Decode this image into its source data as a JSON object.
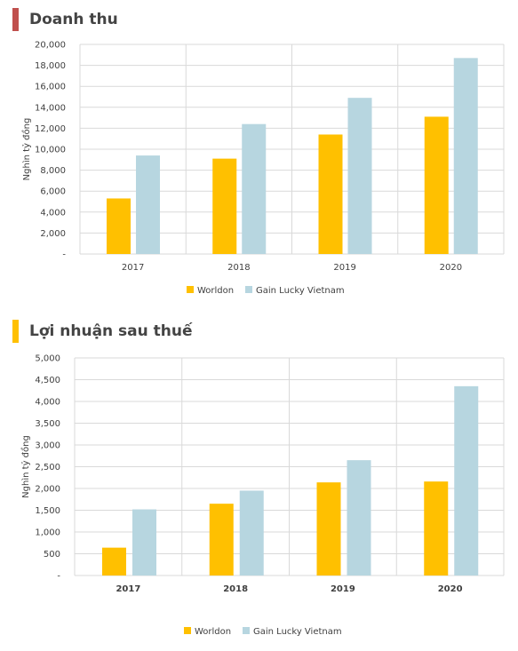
{
  "colors": {
    "worldon": "#FFC000",
    "gain": "#B7D6E0",
    "bar_red": "#C0504D",
    "bar_yellow": "#FFC000"
  },
  "chart_data": [
    {
      "type": "bar",
      "title": "Doanh thu",
      "ylabel": "Nghìn tỷ đồng",
      "xlabel": "",
      "ylim": [
        0,
        20000
      ],
      "yticks": [
        0,
        2000,
        4000,
        6000,
        8000,
        10000,
        12000,
        14000,
        16000,
        18000,
        20000
      ],
      "ytick_labels": [
        "-",
        "2,000",
        "4,000",
        "6,000",
        "8,000",
        "10,000",
        "12,000",
        "14,000",
        "16,000",
        "18,000",
        "20,000"
      ],
      "categories": [
        "2017",
        "2018",
        "2019",
        "2020"
      ],
      "series": [
        {
          "name": "Worldon",
          "values": [
            5300,
            9100,
            11400,
            13100
          ]
        },
        {
          "name": "Gain Lucky Vietnam",
          "values": [
            9400,
            12400,
            14900,
            18700
          ]
        }
      ],
      "legend": "bottom-center",
      "grid": true
    },
    {
      "type": "bar",
      "title": "Lợi nhuận sau thuế",
      "ylabel": "Nghìn tỷ đồng",
      "xlabel": "",
      "ylim": [
        0,
        5000
      ],
      "yticks": [
        0,
        500,
        1000,
        1500,
        2000,
        2500,
        3000,
        3500,
        4000,
        4500,
        5000
      ],
      "ytick_labels": [
        "-",
        "500",
        "1,000",
        "1,500",
        "2,000",
        "2,500",
        "3,000",
        "3,500",
        "4,000",
        "4,500",
        "5,000"
      ],
      "categories": [
        "2017",
        "2018",
        "2019",
        "2020"
      ],
      "series": [
        {
          "name": "Worldon",
          "values": [
            640,
            1650,
            2140,
            2160
          ]
        },
        {
          "name": "Gain Lucky Vietnam",
          "values": [
            1520,
            1950,
            2650,
            4350
          ]
        }
      ],
      "legend": "bottom-center",
      "grid": true
    }
  ]
}
